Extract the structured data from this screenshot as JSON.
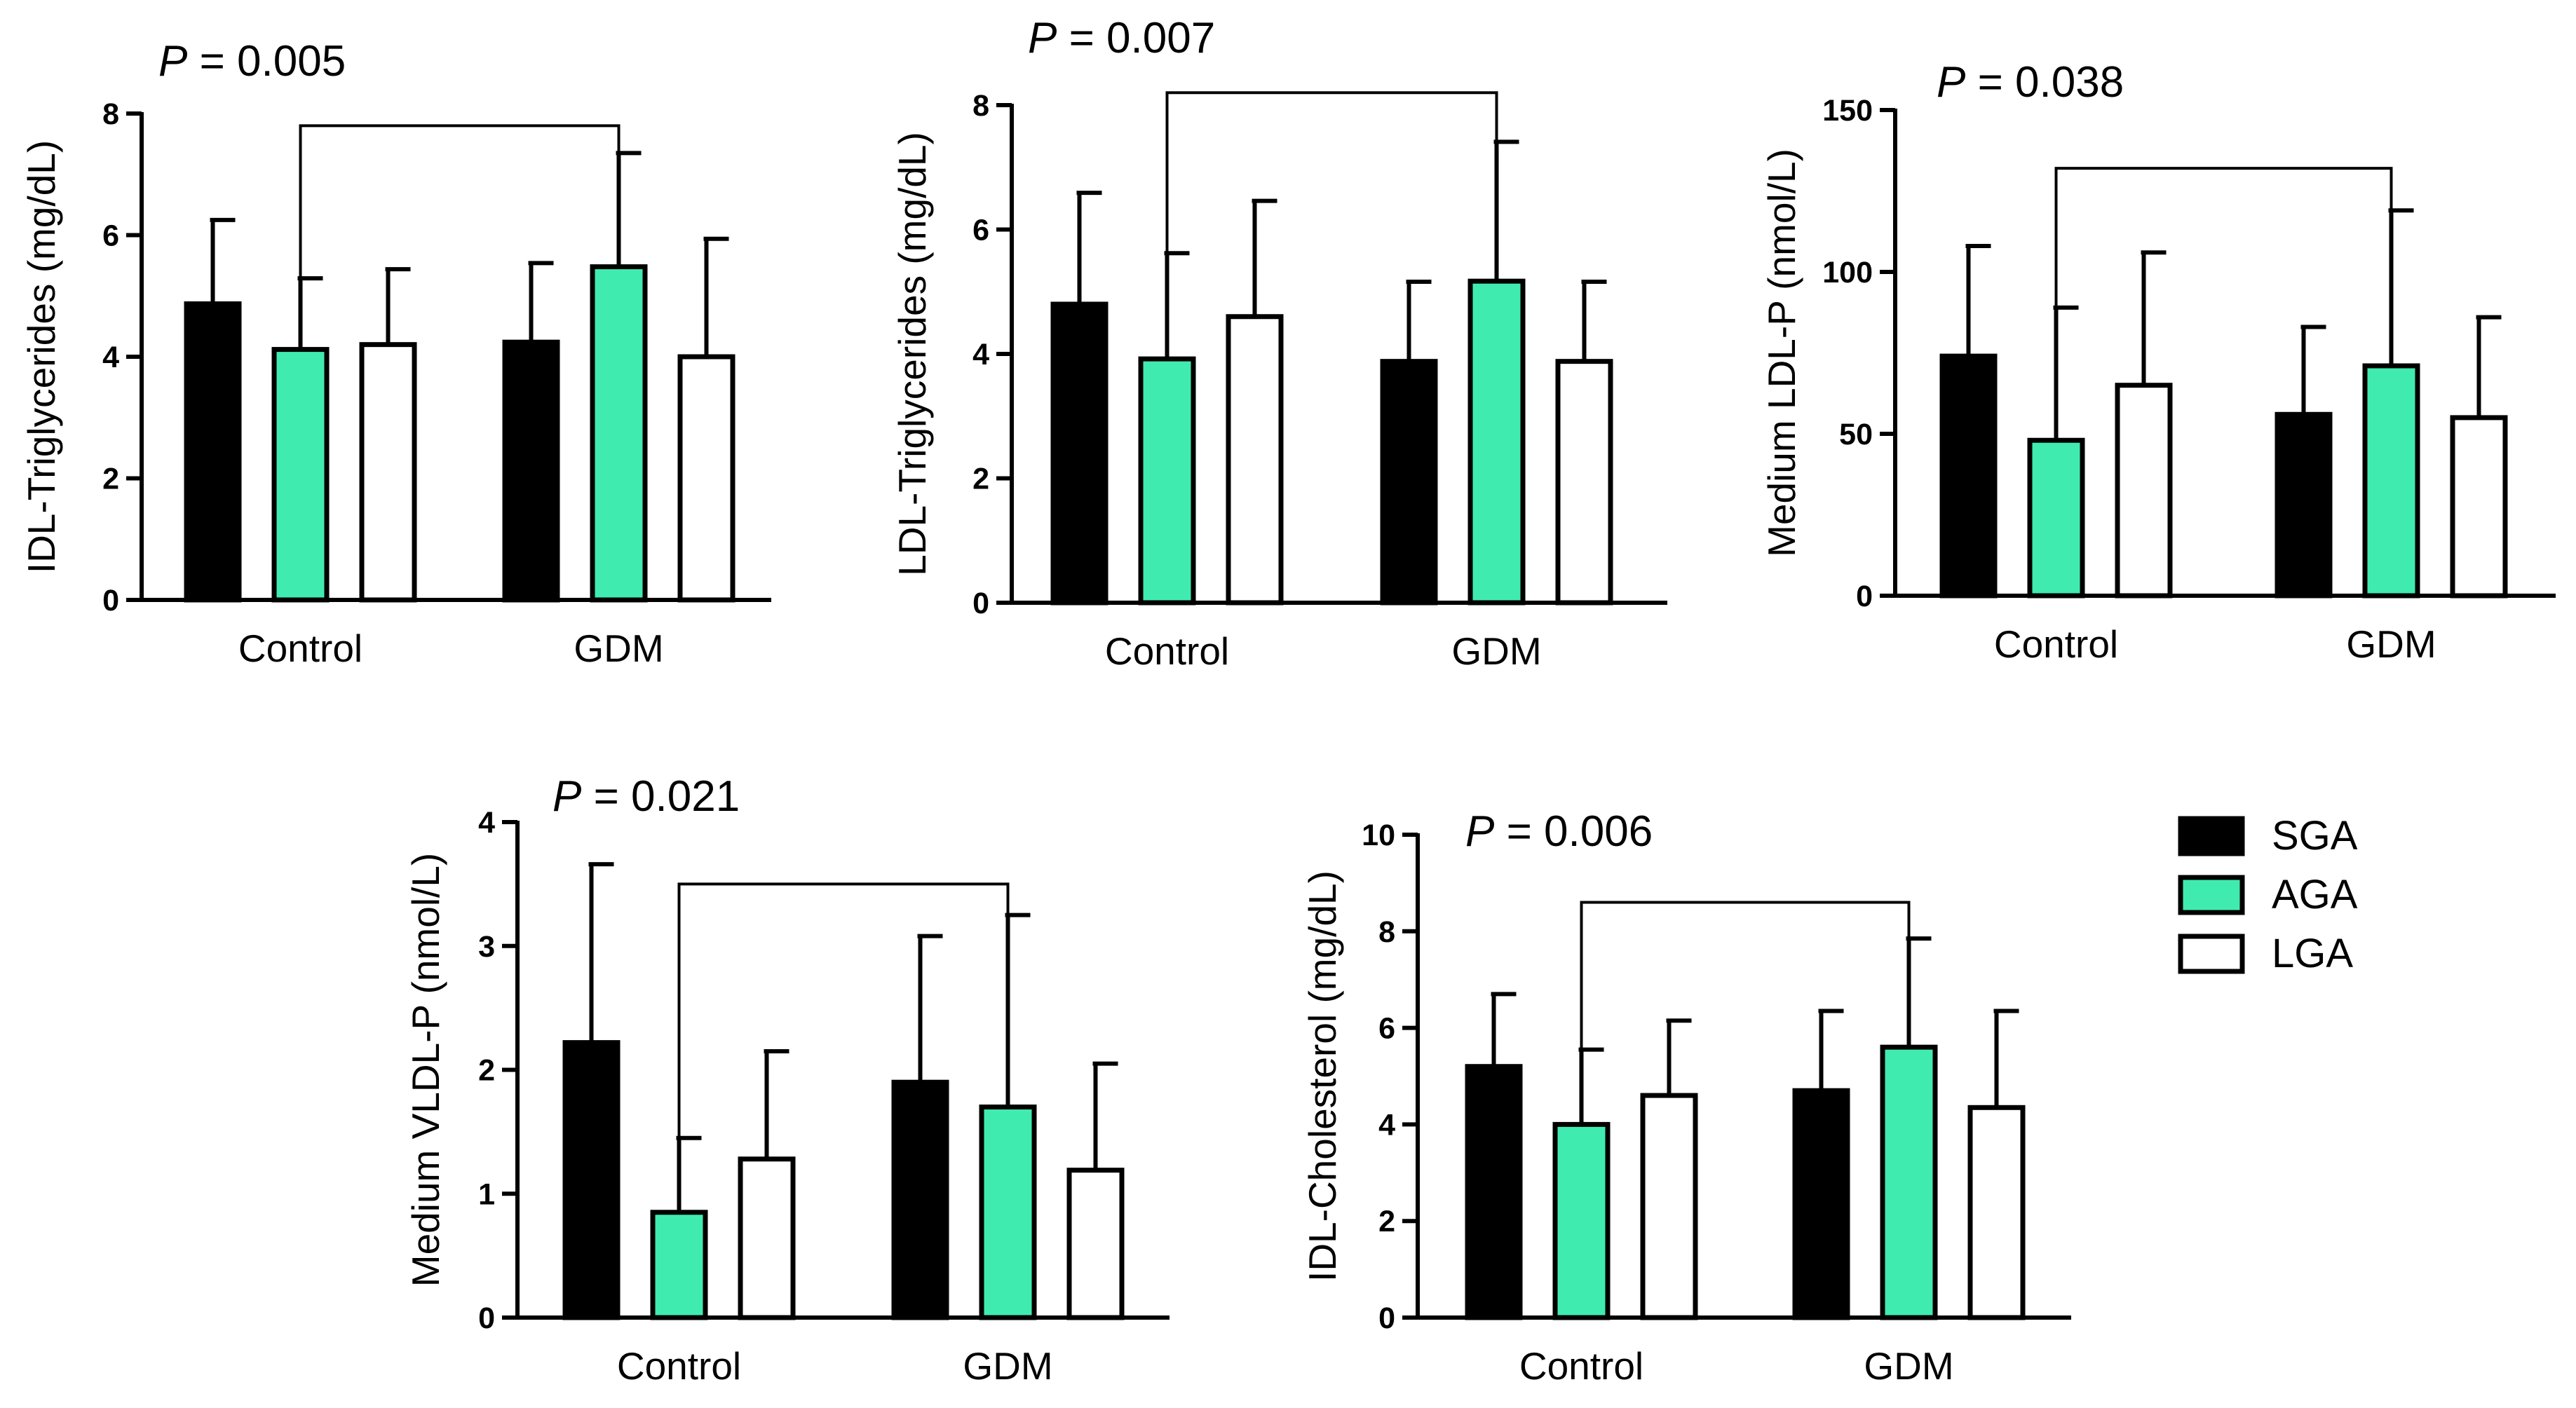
{
  "colors": {
    "SGA": "#000000",
    "AGA": "#40ebb0",
    "LGA": "#ffffff",
    "stroke": "#000000"
  },
  "legend": [
    {
      "name": "SGA",
      "color": "#000000"
    },
    {
      "name": "AGA",
      "color": "#40ebb0"
    },
    {
      "name": "LGA",
      "color": "#ffffff"
    }
  ],
  "chart_data": [
    {
      "type": "bar",
      "categories": [
        "Control",
        "GDM"
      ],
      "series": [
        {
          "name": "SGA",
          "values": [
            4.87,
            4.24
          ],
          "errors": [
            1.38,
            1.3
          ]
        },
        {
          "name": "AGA",
          "values": [
            4.12,
            5.48
          ],
          "errors": [
            1.17,
            1.87
          ]
        },
        {
          "name": "LGA",
          "values": [
            4.2,
            4.0
          ],
          "errors": [
            1.24,
            1.94
          ]
        }
      ],
      "ylabel": "IDL-Triglycerides (mg/dL)",
      "ylim": [
        0,
        8
      ],
      "yticks": [
        0,
        2,
        4,
        6,
        8
      ],
      "annotation": {
        "p_label": "P",
        "p_value": "= 0.005",
        "bracket_from": [
          "Control",
          "AGA"
        ],
        "bracket_to": [
          "GDM",
          "AGA"
        ],
        "bracket_y": 7.8
      }
    },
    {
      "type": "bar",
      "categories": [
        "Control",
        "GDM"
      ],
      "series": [
        {
          "name": "SGA",
          "values": [
            4.8,
            3.88
          ],
          "errors": [
            1.79,
            1.28
          ]
        },
        {
          "name": "AGA",
          "values": [
            3.92,
            5.17
          ],
          "errors": [
            1.7,
            2.24
          ]
        },
        {
          "name": "LGA",
          "values": [
            4.6,
            3.88
          ],
          "errors": [
            1.86,
            1.28
          ]
        }
      ],
      "ylabel": "LDL-Triglycerides (mg/dL)",
      "ylim": [
        0,
        8
      ],
      "yticks": [
        0,
        2,
        4,
        6,
        8
      ],
      "annotation": {
        "p_label": "P",
        "p_value": "= 0.007",
        "bracket_from": [
          "Control",
          "AGA"
        ],
        "bracket_to": [
          "GDM",
          "AGA"
        ],
        "bracket_y": 8.2
      }
    },
    {
      "type": "bar",
      "categories": [
        "Control",
        "GDM"
      ],
      "series": [
        {
          "name": "SGA",
          "values": [
            74,
            56
          ],
          "errors": [
            34,
            27
          ]
        },
        {
          "name": "AGA",
          "values": [
            48,
            71
          ],
          "errors": [
            41,
            48
          ]
        },
        {
          "name": "LGA",
          "values": [
            65,
            55
          ],
          "errors": [
            41,
            31
          ]
        }
      ],
      "ylabel": "Medium LDL-P (nmol/L)",
      "ylim": [
        0,
        150
      ],
      "yticks": [
        0,
        50,
        100,
        150
      ],
      "annotation": {
        "p_label": "P",
        "p_value": "= 0.038",
        "bracket_from": [
          "Control",
          "AGA"
        ],
        "bracket_to": [
          "GDM",
          "AGA"
        ],
        "bracket_y": 132
      }
    },
    {
      "type": "bar",
      "categories": [
        "Control",
        "GDM"
      ],
      "series": [
        {
          "name": "SGA",
          "values": [
            2.22,
            1.9
          ],
          "errors": [
            1.44,
            1.18
          ]
        },
        {
          "name": "AGA",
          "values": [
            0.85,
            1.7
          ],
          "errors": [
            0.6,
            1.55
          ]
        },
        {
          "name": "LGA",
          "values": [
            1.28,
            1.19
          ],
          "errors": [
            0.87,
            0.86
          ]
        }
      ],
      "ylabel": "Medium VLDL-P (nmol/L)",
      "ylim": [
        0,
        4
      ],
      "yticks": [
        0,
        1,
        2,
        3,
        4
      ],
      "annotation": {
        "p_label": "P",
        "p_value": "= 0.021",
        "bracket_from": [
          "Control",
          "AGA"
        ],
        "bracket_to": [
          "GDM",
          "AGA"
        ],
        "bracket_y": 3.5
      }
    },
    {
      "type": "bar",
      "categories": [
        "Control",
        "GDM"
      ],
      "series": [
        {
          "name": "SGA",
          "values": [
            5.2,
            4.7
          ],
          "errors": [
            1.5,
            1.65
          ]
        },
        {
          "name": "AGA",
          "values": [
            4.0,
            5.6
          ],
          "errors": [
            1.55,
            2.25
          ]
        },
        {
          "name": "LGA",
          "values": [
            4.6,
            4.35
          ],
          "errors": [
            1.55,
            2.0
          ]
        }
      ],
      "ylabel": "IDL-Cholesterol (mg/dL)",
      "ylim": [
        0,
        10
      ],
      "yticks": [
        0,
        2,
        4,
        6,
        8,
        10
      ],
      "annotation": {
        "p_label": "P",
        "p_value": "= 0.006",
        "bracket_from": [
          "Control",
          "AGA"
        ],
        "bracket_to": [
          "GDM",
          "AGA"
        ],
        "bracket_y": 8.6
      }
    }
  ]
}
